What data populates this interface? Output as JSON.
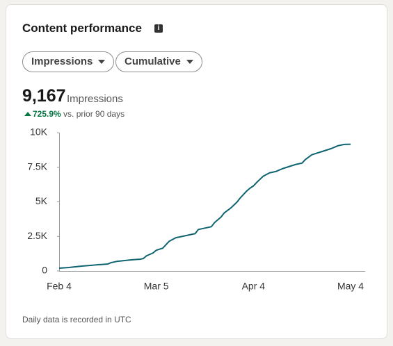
{
  "title": "Content performance",
  "filters": [
    "Impressions",
    "Cumulative"
  ],
  "summary": {
    "total": "9,167",
    "label": "Impressions",
    "change": "725.9%",
    "change_note": "vs. prior 90 days"
  },
  "footnote": "Daily data is recorded in UTC",
  "chart_data": {
    "type": "line",
    "color": "#0e6470",
    "categories": [
      "Feb 4",
      null,
      null,
      null,
      null,
      null,
      null,
      null,
      null,
      null,
      null,
      null,
      null,
      null,
      null,
      null,
      null,
      null,
      null,
      null,
      null,
      null,
      null,
      null,
      null,
      null,
      null,
      null,
      null,
      null,
      "Mar 5",
      null,
      null,
      null,
      null,
      null,
      null,
      null,
      null,
      null,
      null,
      null,
      null,
      null,
      null,
      null,
      null,
      null,
      null,
      null,
      null,
      null,
      null,
      null,
      null,
      null,
      null,
      null,
      null,
      null,
      "Apr 4",
      null,
      null,
      null,
      null,
      null,
      null,
      null,
      null,
      null,
      null,
      null,
      null,
      null,
      null,
      null,
      null,
      null,
      null,
      null,
      null,
      null,
      null,
      null,
      null,
      null,
      null,
      null,
      null,
      null,
      "May 4"
    ],
    "values": [
      200,
      217,
      233,
      250,
      275,
      300,
      325,
      350,
      370,
      390,
      410,
      430,
      450,
      467,
      483,
      500,
      600,
      650,
      700,
      725,
      750,
      775,
      800,
      817,
      833,
      850,
      900,
      1100,
      1200,
      1300,
      1500,
      1575,
      1650,
      1900,
      2150,
      2275,
      2400,
      2450,
      2500,
      2550,
      2600,
      2650,
      2700,
      3000,
      3050,
      3100,
      3150,
      3200,
      3500,
      3700,
      3900,
      4200,
      4375,
      4550,
      4775,
      5000,
      5300,
      5550,
      5800,
      6000,
      6150,
      6400,
      6625,
      6850,
      6975,
      7100,
      7150,
      7200,
      7300,
      7400,
      7475,
      7550,
      7625,
      7700,
      7750,
      7800,
      8050,
      8225,
      8400,
      8475,
      8550,
      8625,
      8700,
      8775,
      8850,
      8950,
      9050,
      9100,
      9150,
      9160,
      9167
    ],
    "ylim": [
      0,
      10000
    ],
    "yticks": [
      0,
      {
        "value": 2500,
        "label": "2.5K"
      },
      {
        "value": 5000,
        "label": "5K"
      },
      {
        "value": 7500,
        "label": "7.5K"
      },
      {
        "value": 10000,
        "label": "10K"
      }
    ],
    "grid": false
  }
}
